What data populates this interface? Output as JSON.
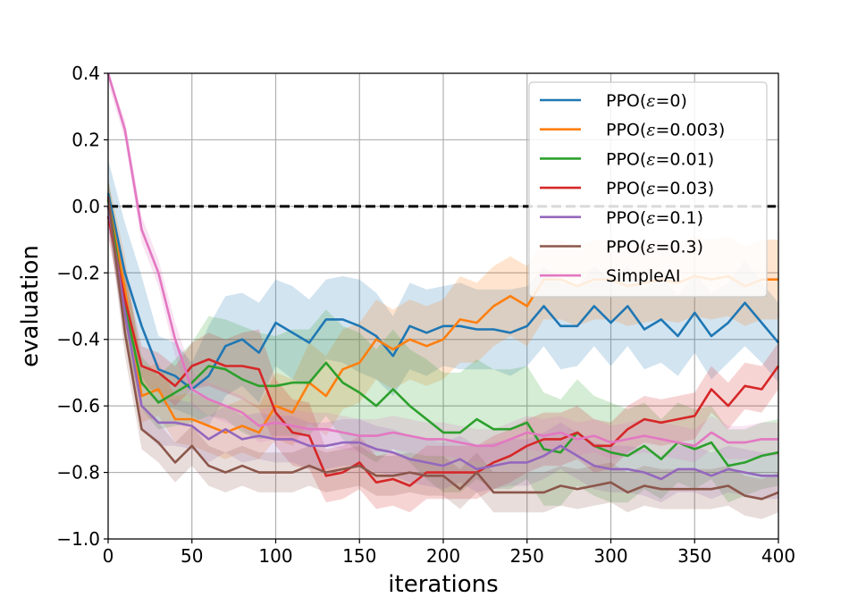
{
  "chart_data": {
    "type": "line",
    "title": "",
    "xlabel": "iterations",
    "ylabel": "evaluation",
    "xlim": [
      0,
      400
    ],
    "ylim": [
      -1.0,
      0.4
    ],
    "xticks": [
      0,
      50,
      100,
      150,
      200,
      250,
      300,
      350,
      400
    ],
    "yticks": [
      -1.0,
      -0.8,
      -0.6,
      -0.4,
      -0.2,
      0.0,
      0.2,
      0.4
    ],
    "xtick_labels": [
      "0",
      "50",
      "100",
      "150",
      "200",
      "250",
      "300",
      "350",
      "400"
    ],
    "ytick_labels": [
      "−1.0",
      "−0.8",
      "−0.6",
      "−0.4",
      "−0.2",
      "0.0",
      "0.2",
      "0.4"
    ],
    "grid": true,
    "legend_position": "top-right",
    "reference_line": {
      "y": 0.0,
      "style": "dashed",
      "color": "#000000"
    },
    "x": [
      0,
      10,
      20,
      30,
      40,
      50,
      60,
      70,
      80,
      90,
      100,
      110,
      120,
      130,
      140,
      150,
      160,
      170,
      180,
      190,
      200,
      210,
      220,
      230,
      240,
      250,
      260,
      270,
      280,
      290,
      300,
      310,
      320,
      330,
      340,
      350,
      360,
      370,
      380,
      390,
      400
    ],
    "series": [
      {
        "name": "PPO(ε=0)",
        "label_prefix": "PPO(",
        "label_eps": "ε",
        "label_suffix": "=0)",
        "color": "#1f77b4",
        "values": [
          0.04,
          -0.2,
          -0.36,
          -0.49,
          -0.51,
          -0.55,
          -0.51,
          -0.42,
          -0.4,
          -0.44,
          -0.35,
          -0.38,
          -0.41,
          -0.34,
          -0.34,
          -0.36,
          -0.39,
          -0.45,
          -0.36,
          -0.38,
          -0.36,
          -0.36,
          -0.37,
          -0.37,
          -0.38,
          -0.36,
          -0.3,
          -0.36,
          -0.36,
          -0.3,
          -0.35,
          -0.3,
          -0.37,
          -0.34,
          -0.39,
          -0.32,
          -0.39,
          -0.35,
          -0.29,
          -0.35,
          -0.41
        ],
        "band": [
          0.1,
          0.15,
          0.15,
          0.1,
          0.1,
          0.08,
          0.15,
          0.15,
          0.14,
          0.15,
          0.13,
          0.14,
          0.13,
          0.12,
          0.13,
          0.14,
          0.13,
          0.12,
          0.13,
          0.13,
          0.12,
          0.13,
          0.12,
          0.12,
          0.13,
          0.12,
          0.12,
          0.13,
          0.12,
          0.12,
          0.13,
          0.12,
          0.12,
          0.13,
          0.12,
          0.12,
          0.13,
          0.12,
          0.13,
          0.12,
          0.12
        ]
      },
      {
        "name": "PPO(ε=0.003)",
        "label_prefix": "PPO(",
        "label_eps": "ε",
        "label_suffix": "=0.003)",
        "color": "#ff7f0e",
        "values": [
          0.02,
          -0.25,
          -0.57,
          -0.55,
          -0.64,
          -0.64,
          -0.66,
          -0.68,
          -0.66,
          -0.68,
          -0.6,
          -0.62,
          -0.53,
          -0.57,
          -0.49,
          -0.47,
          -0.4,
          -0.43,
          -0.4,
          -0.42,
          -0.4,
          -0.34,
          -0.35,
          -0.3,
          -0.27,
          -0.3,
          -0.22,
          -0.22,
          -0.24,
          -0.22,
          -0.22,
          -0.24,
          -0.23,
          -0.22,
          -0.23,
          -0.21,
          -0.22,
          -0.21,
          -0.24,
          -0.22,
          -0.22
        ],
        "band": [
          0.06,
          0.1,
          0.08,
          0.08,
          0.07,
          0.08,
          0.08,
          0.08,
          0.08,
          0.08,
          0.1,
          0.1,
          0.12,
          0.12,
          0.12,
          0.12,
          0.12,
          0.12,
          0.12,
          0.12,
          0.12,
          0.13,
          0.12,
          0.12,
          0.12,
          0.12,
          0.12,
          0.12,
          0.12,
          0.12,
          0.12,
          0.12,
          0.12,
          0.12,
          0.12,
          0.12,
          0.12,
          0.12,
          0.12,
          0.12,
          0.12
        ]
      },
      {
        "name": "PPO(ε=0.01)",
        "label_prefix": "PPO(",
        "label_eps": "ε",
        "label_suffix": "=0.01)",
        "color": "#2ca02c",
        "values": [
          0.02,
          -0.3,
          -0.53,
          -0.59,
          -0.56,
          -0.53,
          -0.48,
          -0.49,
          -0.52,
          -0.54,
          -0.54,
          -0.53,
          -0.53,
          -0.47,
          -0.53,
          -0.56,
          -0.6,
          -0.55,
          -0.6,
          -0.64,
          -0.68,
          -0.68,
          -0.64,
          -0.67,
          -0.67,
          -0.65,
          -0.73,
          -0.74,
          -0.68,
          -0.72,
          -0.74,
          -0.75,
          -0.72,
          -0.76,
          -0.71,
          -0.73,
          -0.71,
          -0.78,
          -0.77,
          -0.75,
          -0.74
        ],
        "band": [
          0.06,
          0.1,
          0.08,
          0.08,
          0.1,
          0.12,
          0.15,
          0.15,
          0.16,
          0.16,
          0.15,
          0.16,
          0.16,
          0.16,
          0.17,
          0.18,
          0.17,
          0.18,
          0.17,
          0.18,
          0.18,
          0.18,
          0.18,
          0.18,
          0.18,
          0.17,
          0.17,
          0.16,
          0.16,
          0.15,
          0.15,
          0.14,
          0.13,
          0.12,
          0.12,
          0.12,
          0.11,
          0.11,
          0.1,
          0.1,
          0.1
        ]
      },
      {
        "name": "PPO(ε=0.03)",
        "label_prefix": "PPO(",
        "label_eps": "ε",
        "label_suffix": "=0.03)",
        "color": "#d62728",
        "values": [
          -0.03,
          -0.28,
          -0.48,
          -0.5,
          -0.54,
          -0.48,
          -0.46,
          -0.48,
          -0.48,
          -0.49,
          -0.62,
          -0.68,
          -0.69,
          -0.81,
          -0.8,
          -0.77,
          -0.83,
          -0.82,
          -0.84,
          -0.8,
          -0.8,
          -0.8,
          -0.8,
          -0.77,
          -0.75,
          -0.72,
          -0.7,
          -0.7,
          -0.68,
          -0.72,
          -0.72,
          -0.67,
          -0.64,
          -0.65,
          -0.64,
          -0.63,
          -0.55,
          -0.6,
          -0.54,
          -0.55,
          -0.48
        ],
        "band": [
          0.06,
          0.08,
          0.06,
          0.06,
          0.06,
          0.07,
          0.08,
          0.08,
          0.1,
          0.12,
          0.1,
          0.1,
          0.1,
          0.08,
          0.08,
          0.08,
          0.08,
          0.08,
          0.08,
          0.08,
          0.08,
          0.08,
          0.08,
          0.08,
          0.08,
          0.08,
          0.08,
          0.08,
          0.08,
          0.08,
          0.07,
          0.07,
          0.07,
          0.07,
          0.07,
          0.07,
          0.07,
          0.07,
          0.07,
          0.07,
          0.07
        ]
      },
      {
        "name": "PPO(ε=0.1)",
        "label_prefix": "PPO(",
        "label_eps": "ε",
        "label_suffix": "=0.1)",
        "color": "#9467bd",
        "values": [
          0.0,
          -0.32,
          -0.6,
          -0.65,
          -0.65,
          -0.66,
          -0.7,
          -0.67,
          -0.7,
          -0.69,
          -0.7,
          -0.7,
          -0.72,
          -0.72,
          -0.71,
          -0.71,
          -0.73,
          -0.74,
          -0.76,
          -0.77,
          -0.78,
          -0.76,
          -0.79,
          -0.78,
          -0.77,
          -0.77,
          -0.75,
          -0.72,
          -0.75,
          -0.78,
          -0.79,
          -0.79,
          -0.8,
          -0.82,
          -0.79,
          -0.79,
          -0.81,
          -0.79,
          -0.8,
          -0.81,
          -0.81
        ],
        "band": [
          0.06,
          0.08,
          0.07,
          0.07,
          0.07,
          0.07,
          0.07,
          0.07,
          0.07,
          0.07,
          0.07,
          0.07,
          0.07,
          0.07,
          0.07,
          0.07,
          0.07,
          0.07,
          0.07,
          0.07,
          0.07,
          0.07,
          0.07,
          0.07,
          0.07,
          0.07,
          0.07,
          0.07,
          0.07,
          0.07,
          0.07,
          0.07,
          0.07,
          0.07,
          0.07,
          0.07,
          0.07,
          0.07,
          0.07,
          0.07,
          0.07
        ]
      },
      {
        "name": "PPO(ε=0.3)",
        "label_prefix": "PPO(",
        "label_eps": "ε",
        "label_suffix": "=0.3)",
        "color": "#8c564b",
        "values": [
          0.03,
          -0.38,
          -0.67,
          -0.71,
          -0.77,
          -0.72,
          -0.78,
          -0.8,
          -0.78,
          -0.8,
          -0.8,
          -0.8,
          -0.78,
          -0.8,
          -0.79,
          -0.78,
          -0.81,
          -0.81,
          -0.8,
          -0.81,
          -0.81,
          -0.85,
          -0.8,
          -0.86,
          -0.86,
          -0.86,
          -0.86,
          -0.84,
          -0.85,
          -0.84,
          -0.83,
          -0.86,
          -0.84,
          -0.85,
          -0.85,
          -0.85,
          -0.85,
          -0.84,
          -0.87,
          -0.88,
          -0.86
        ],
        "band": [
          0.06,
          0.07,
          0.06,
          0.06,
          0.06,
          0.06,
          0.06,
          0.06,
          0.06,
          0.06,
          0.06,
          0.06,
          0.06,
          0.06,
          0.06,
          0.06,
          0.06,
          0.06,
          0.06,
          0.06,
          0.06,
          0.06,
          0.06,
          0.06,
          0.06,
          0.06,
          0.06,
          0.06,
          0.06,
          0.06,
          0.06,
          0.06,
          0.06,
          0.06,
          0.06,
          0.06,
          0.06,
          0.06,
          0.06,
          0.06,
          0.06
        ]
      },
      {
        "name": "SimpleAI",
        "label_prefix": "SimpleAI",
        "label_eps": "",
        "label_suffix": "",
        "color": "#e377c2",
        "values": [
          0.4,
          0.23,
          -0.07,
          -0.2,
          -0.4,
          -0.55,
          -0.58,
          -0.6,
          -0.62,
          -0.66,
          -0.65,
          -0.66,
          -0.67,
          -0.67,
          -0.68,
          -0.69,
          -0.69,
          -0.68,
          -0.69,
          -0.7,
          -0.7,
          -0.71,
          -0.72,
          -0.72,
          -0.7,
          -0.68,
          -0.69,
          -0.68,
          -0.7,
          -0.69,
          -0.71,
          -0.7,
          -0.69,
          -0.7,
          -0.71,
          -0.72,
          -0.68,
          -0.71,
          -0.71,
          -0.7,
          -0.7
        ],
        "band": [
          0.03,
          0.03,
          0.04,
          0.04,
          0.05,
          0.05,
          0.05,
          0.05,
          0.05,
          0.05,
          0.05,
          0.05,
          0.05,
          0.05,
          0.05,
          0.05,
          0.05,
          0.05,
          0.05,
          0.05,
          0.05,
          0.05,
          0.05,
          0.05,
          0.05,
          0.05,
          0.05,
          0.05,
          0.05,
          0.05,
          0.05,
          0.05,
          0.05,
          0.05,
          0.05,
          0.05,
          0.05,
          0.05,
          0.05,
          0.05,
          0.05
        ]
      }
    ]
  }
}
